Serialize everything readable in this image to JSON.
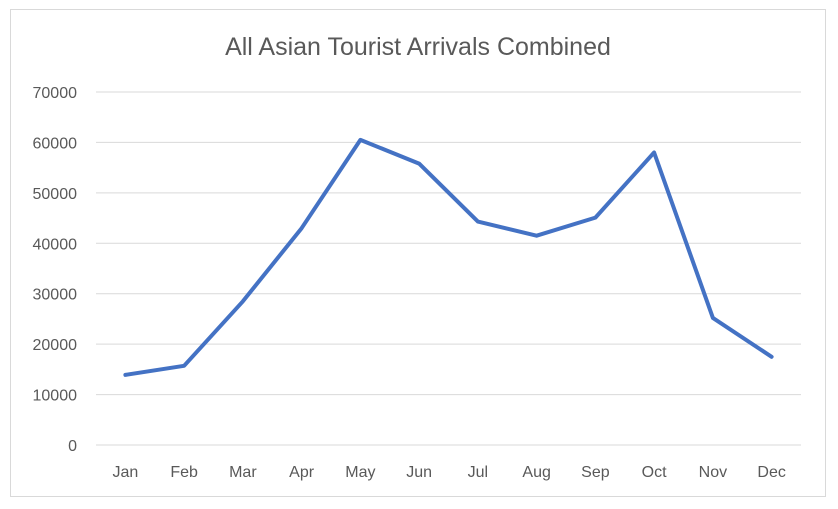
{
  "chart_data": {
    "type": "line",
    "title": "All Asian Tourist Arrivals Combined",
    "categories": [
      "Jan",
      "Feb",
      "Mar",
      "Apr",
      "May",
      "Jun",
      "Jul",
      "Aug",
      "Sep",
      "Oct",
      "Nov",
      "Dec"
    ],
    "series": [
      {
        "values": [
          13900,
          15700,
          28500,
          43000,
          60500,
          55800,
          44300,
          41500,
          45100,
          58000,
          25200,
          17500
        ],
        "color": "#4472c4"
      }
    ],
    "yticks": [
      "0",
      "10000",
      "20000",
      "30000",
      "40000",
      "50000",
      "60000",
      "70000"
    ],
    "ylim": [
      0,
      70000
    ],
    "xlabel": "",
    "ylabel": "",
    "grid": true,
    "legend": "none",
    "gridline_color": "#d9d9d9",
    "text_color": "#595959"
  }
}
